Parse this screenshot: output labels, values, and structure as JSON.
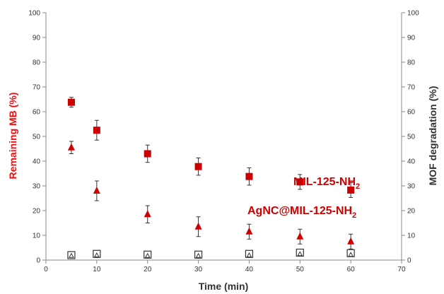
{
  "chart_data": {
    "type": "scatter",
    "title": "",
    "xlabel": "Time (min)",
    "ylabel_left": "Remaining MB (%)",
    "ylabel_right": "MOF degradation (%)",
    "xlim": [
      0,
      70
    ],
    "ylim_left": [
      0,
      100
    ],
    "ylim_right": [
      0,
      100
    ],
    "x_ticks": [
      0,
      10,
      20,
      30,
      40,
      50,
      60,
      70
    ],
    "y_ticks": [
      0,
      10,
      20,
      30,
      40,
      50,
      60,
      70,
      80,
      90,
      100
    ],
    "grid": false,
    "colors": {
      "red": "#cc0000",
      "left_axis_title": "#ee1111",
      "dark": "#333333",
      "axis": "#888888"
    },
    "labels": {
      "mil": {
        "main": "MIL-125-NH",
        "sub": "2"
      },
      "agnc": {
        "main": "AgNC@MIL-125-NH",
        "sub": "2"
      }
    },
    "series": [
      {
        "name": "MIL-125-NH2",
        "axis": "left",
        "marker": "square-filled",
        "x": [
          5,
          10,
          20,
          30,
          40,
          50,
          60
        ],
        "y": [
          63.8,
          52.5,
          43,
          37.8,
          33.8,
          31.6,
          28.3
        ],
        "err": [
          2,
          4,
          3.5,
          3.5,
          3.5,
          3,
          3
        ]
      },
      {
        "name": "AgNC@MIL-125-NH2",
        "axis": "left",
        "marker": "triangle-filled",
        "x": [
          5,
          10,
          20,
          30,
          40,
          50,
          60
        ],
        "y": [
          45.5,
          28,
          18.5,
          13.5,
          11.5,
          9.5,
          7.5
        ],
        "err": [
          2.5,
          4,
          3.5,
          4,
          3,
          3,
          3
        ]
      },
      {
        "name": "MIL-125-NH2 degradation",
        "axis": "right",
        "marker": "square-open",
        "x": [
          5,
          10,
          20,
          30,
          40,
          50,
          60
        ],
        "y": [
          2,
          2.5,
          2.2,
          2.2,
          2.5,
          3,
          2.8
        ],
        "err": [
          0,
          0,
          0,
          0,
          0,
          0,
          0
        ]
      },
      {
        "name": "AgNC@MIL-125-NH2 degradation",
        "axis": "right",
        "marker": "triangle-open",
        "x": [
          5,
          10,
          20,
          30,
          40,
          50,
          60
        ],
        "y": [
          1.8,
          2,
          1.8,
          1.8,
          2,
          2.5,
          2.2
        ],
        "err": [
          0,
          0,
          0,
          0,
          0,
          0,
          0
        ]
      }
    ]
  }
}
